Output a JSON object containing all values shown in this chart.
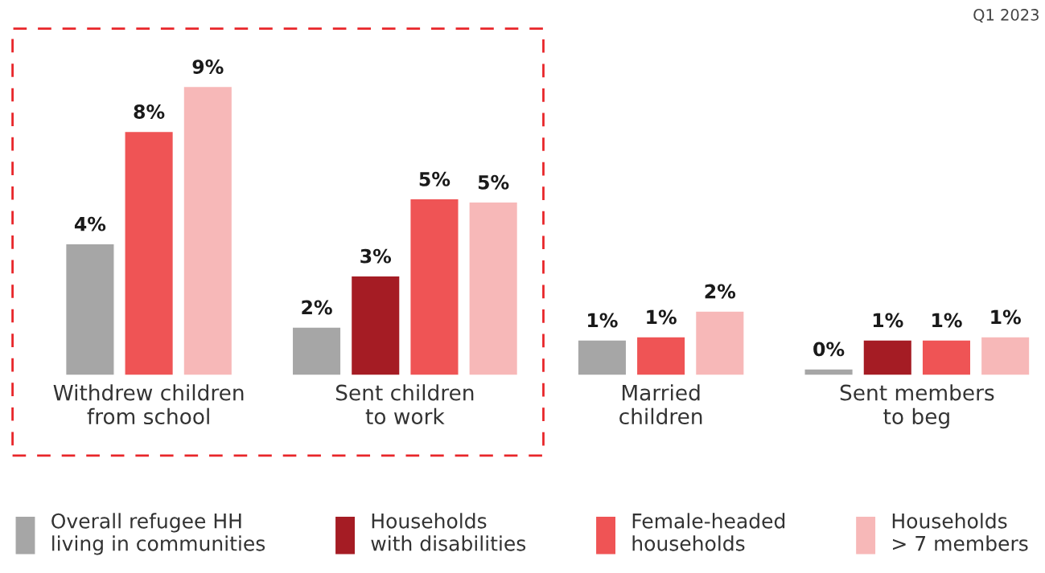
{
  "chart_data": {
    "type": "bar",
    "categories": [
      "Withdrew children\nfrom school",
      "Sent children\nto work",
      "Married\nchildren",
      "Sent members\nto beg"
    ],
    "series": [
      {
        "name": "Overall refugee HH\nliving in communities",
        "color": "#a6a6a6",
        "values": [
          4.1,
          1.5,
          1.1,
          0.2
        ],
        "value_labels": [
          "4%",
          "2%",
          "1%",
          "0%"
        ]
      },
      {
        "name": "Households\nwith disabilities",
        "color": "#a51c24",
        "values": [
          null,
          3.1,
          null,
          1.1
        ],
        "value_labels": [
          null,
          "3%",
          null,
          "1%"
        ]
      },
      {
        "name": "Female-headed\nhouseholds",
        "color": "#ef5455",
        "values": [
          7.6,
          5.5,
          1.2,
          1.1
        ],
        "value_labels": [
          "8%",
          "5%",
          "1%",
          "1%"
        ]
      },
      {
        "name": "Households\n> 7 members",
        "color": "#f7b8b8",
        "values": [
          9.0,
          5.4,
          2.0,
          1.2
        ],
        "value_labels": [
          "9%",
          "5%",
          "2%",
          "1%"
        ]
      }
    ],
    "annotations": [
      "Q1 2023"
    ],
    "legend": "bottom",
    "grid": false
  }
}
